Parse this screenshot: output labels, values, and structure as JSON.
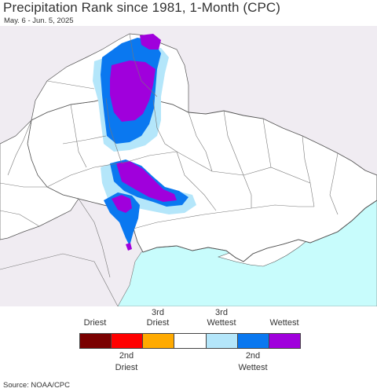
{
  "title": "Precipitation Rank since 1981, 1-Month (CPC)",
  "subtitle": "May. 6 - Jun. 5, 2025",
  "legend": {
    "top_labels": [
      "Driest",
      "3rd\nDriest",
      "3rd\nWettest",
      "Wettest"
    ],
    "bottom_labels": [
      "2nd\nDriest",
      "2nd\nWettest"
    ],
    "colors": [
      "#7a0000",
      "#ff0000",
      "#ffaa00",
      "#ffffff",
      "#b4e6fa",
      "#0a78f0",
      "#a000dc"
    ]
  },
  "source": "Source: NOAA/CPC",
  "map_colors": {
    "land_outside": "#f0ecf2",
    "land_region": "#ffffff",
    "sea": "#c8fcfc",
    "border": "#555555",
    "rank_wettest": "#a000dc",
    "rank_2nd_wettest": "#0a78f0",
    "rank_3rd_wettest": "#b4e6fa"
  }
}
